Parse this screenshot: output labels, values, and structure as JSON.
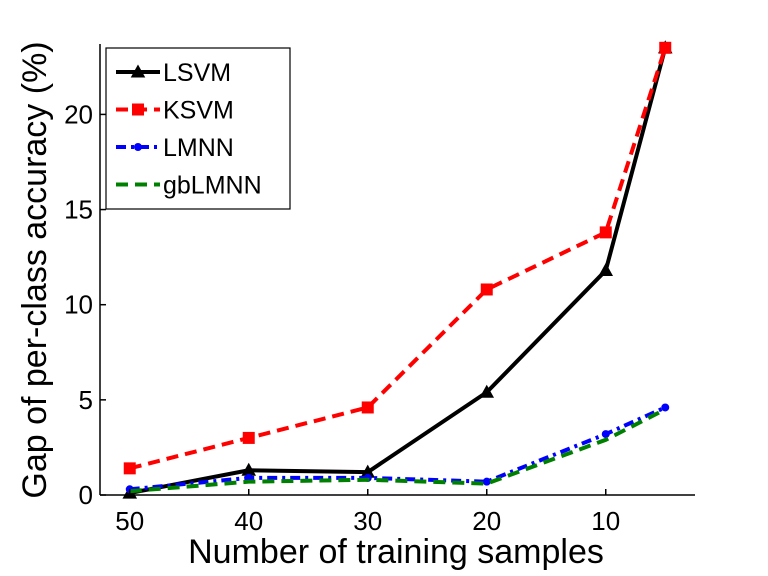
{
  "chart_data": {
    "type": "line",
    "title": "",
    "xlabel": "Number of training samples",
    "ylabel": "Gap of per-class accuracy (%)",
    "x": [
      50,
      40,
      30,
      20,
      10,
      5
    ],
    "xticks": [
      50,
      40,
      30,
      20,
      10
    ],
    "xlim": [
      52.5,
      2.5
    ],
    "x_reversed": true,
    "yticks": [
      0,
      5,
      10,
      15,
      20
    ],
    "ylim": [
      0,
      23.7
    ],
    "grid": false,
    "legend_position": "top-left",
    "series": [
      {
        "name": "LSVM",
        "color": "#000000",
        "line": "solid",
        "marker": "triangle",
        "values": [
          0.1,
          1.3,
          1.2,
          5.4,
          11.8,
          23.5
        ]
      },
      {
        "name": "KSVM",
        "color": "#ff0000",
        "line": "dashed",
        "marker": "square",
        "values": [
          1.4,
          3.0,
          4.6,
          10.8,
          13.8,
          23.5
        ]
      },
      {
        "name": "LMNN",
        "color": "#0000ff",
        "line": "dashdot",
        "marker": "dot",
        "values": [
          0.3,
          0.9,
          0.9,
          0.7,
          3.2,
          4.6
        ]
      },
      {
        "name": "gbLMNN",
        "color": "#008000",
        "line": "dashed",
        "marker": "none",
        "values": [
          0.2,
          0.7,
          0.8,
          0.6,
          2.9,
          4.5
        ]
      }
    ]
  }
}
